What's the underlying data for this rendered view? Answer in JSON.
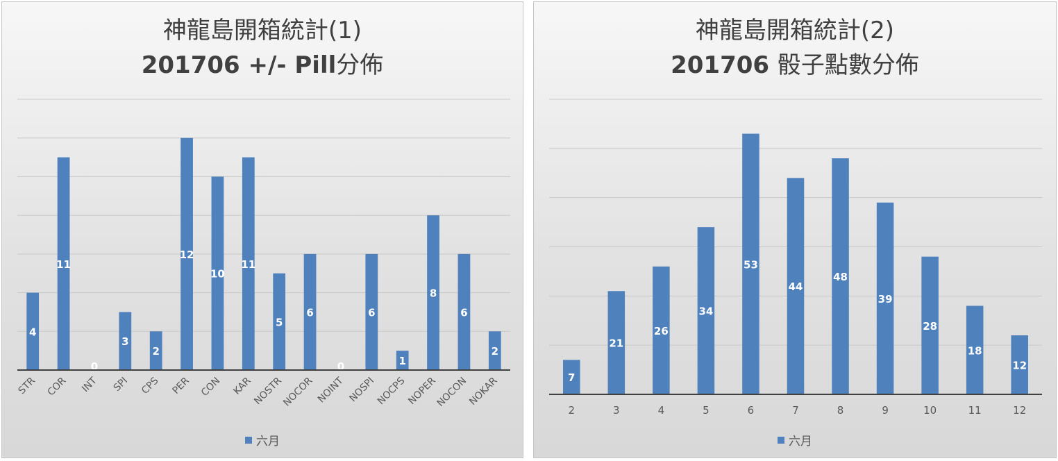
{
  "colors": {
    "bar": "#4f81bd",
    "grid": "#c8c8c8",
    "axis": "#404040",
    "label_inside": "#ffffff",
    "label_outside": "#ffffff"
  },
  "chart_data": [
    {
      "type": "bar",
      "title": "神龍島開箱統計(1)",
      "subtitle": "201706 +/- Pill",
      "subtitle_suffix": "分佈",
      "categories": [
        "STR",
        "COR",
        "INT",
        "SPI",
        "CPS",
        "PER",
        "CON",
        "KAR",
        "NOSTR",
        "NOCOR",
        "NOINT",
        "NOSPI",
        "NOCPS",
        "NOPER",
        "NOCON",
        "NOKAR"
      ],
      "series": [
        {
          "name": "六月",
          "values": [
            4,
            11,
            0,
            3,
            2,
            12,
            10,
            11,
            5,
            6,
            0,
            6,
            1,
            8,
            6,
            2
          ]
        }
      ],
      "ylim": [
        0,
        14
      ],
      "grid": true,
      "xtick_rotation": -45,
      "legend": "bottom"
    },
    {
      "type": "bar",
      "title": "神龍島開箱統計(2)",
      "subtitle": "201706",
      "subtitle_suffix": "骰子點數分佈",
      "categories": [
        "2",
        "3",
        "4",
        "5",
        "6",
        "7",
        "8",
        "9",
        "10",
        "11",
        "12"
      ],
      "series": [
        {
          "name": "六月",
          "values": [
            7,
            21,
            26,
            34,
            53,
            44,
            48,
            39,
            28,
            18,
            12
          ]
        }
      ],
      "ylim": [
        0,
        60
      ],
      "grid": true,
      "xtick_rotation": 0,
      "legend": "bottom"
    }
  ]
}
